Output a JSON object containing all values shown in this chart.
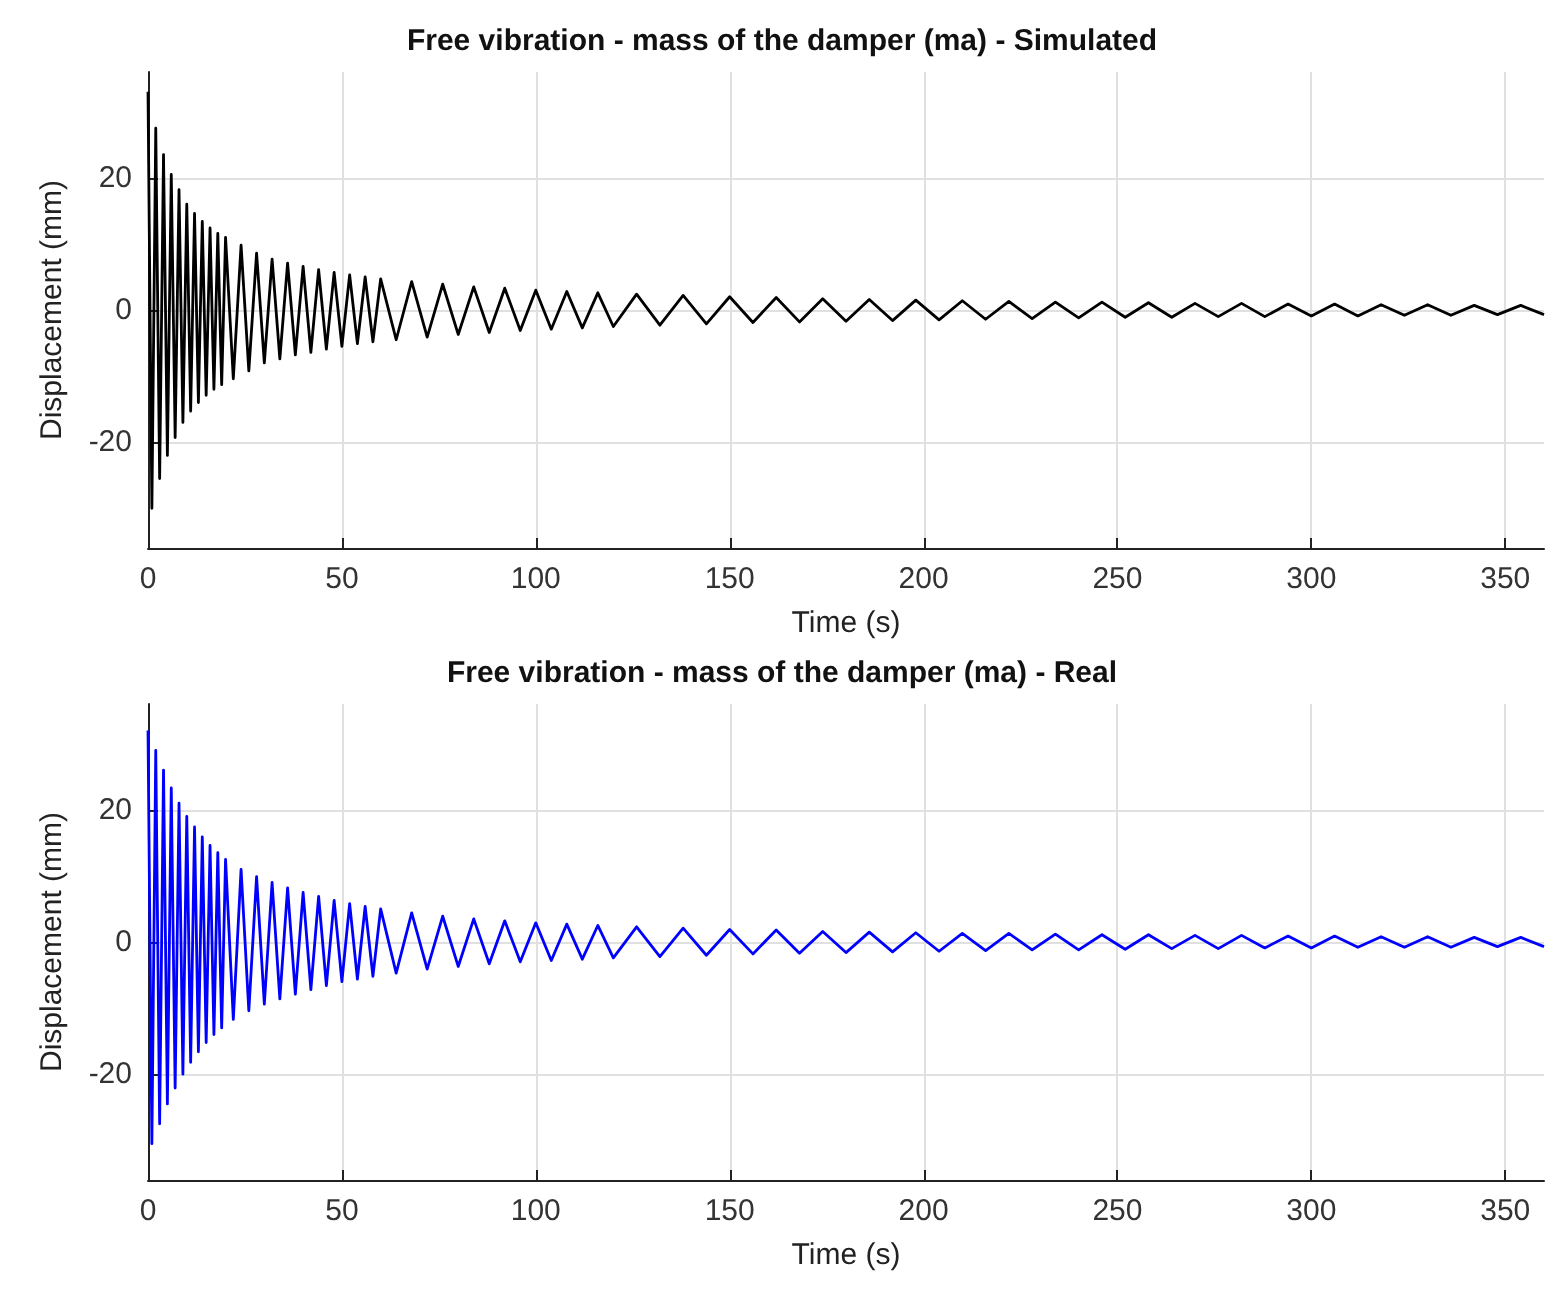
{
  "chart_data": [
    {
      "type": "line",
      "title": "Free vibration - mass of the damper (ma) - Simulated",
      "xlabel": "Time (s)",
      "ylabel": "Displacement (mm)",
      "x": [
        0,
        1,
        2,
        3,
        4,
        5,
        6,
        7,
        8,
        9,
        10,
        11,
        12,
        13,
        14,
        15,
        16,
        17,
        18,
        19,
        20,
        22,
        24,
        26,
        28,
        30,
        32,
        34,
        36,
        38,
        40,
        42,
        44,
        46,
        48,
        50,
        52,
        54,
        56,
        58,
        60,
        64,
        68,
        72,
        76,
        80,
        84,
        88,
        92,
        96,
        100,
        104,
        108,
        112,
        116,
        120,
        126,
        132,
        138,
        144,
        150,
        156,
        162,
        168,
        174,
        180,
        186,
        192,
        198,
        204,
        210,
        216,
        222,
        228,
        234,
        240,
        246,
        252,
        258,
        264,
        270,
        276,
        282,
        288,
        294,
        300,
        306,
        312,
        318,
        324,
        330,
        336,
        342,
        348,
        354,
        360
      ],
      "series": [
        {
          "color": "#000000",
          "values": [
            33,
            -30,
            27.5,
            -25.5,
            23.5,
            -22,
            20.5,
            -19.3,
            18.2,
            -17,
            16,
            -15.3,
            14.6,
            -14,
            13.4,
            -12.9,
            12.4,
            -12,
            11.6,
            -11.3,
            11,
            -10.4,
            9.8,
            -9.2,
            8.6,
            -8,
            7.7,
            -7.4,
            7.1,
            -6.8,
            6.6,
            -6.4,
            6.1,
            -5.9,
            5.7,
            -5.5,
            5.3,
            -5.1,
            5,
            -4.8,
            4.7,
            -4.5,
            4.3,
            -4.1,
            3.9,
            -3.7,
            3.5,
            -3.4,
            3.3,
            -3.1,
            3,
            -2.9,
            2.8,
            -2.7,
            2.6,
            -2.5,
            2.4,
            -2.3,
            2.2,
            -2.1,
            2,
            -1.9,
            1.9,
            -1.8,
            1.7,
            -1.7,
            1.6,
            -1.6,
            1.5,
            -1.5,
            1.4,
            -1.4,
            1.3,
            -1.3,
            1.2,
            -1.2,
            1.2,
            -1.1,
            1.1,
            -1.1,
            1,
            -1,
            1,
            -1,
            0.9,
            -0.9,
            0.9,
            -0.9,
            0.8,
            -0.8,
            0.8,
            -0.8,
            0.7,
            -0.7,
            0.7,
            -0.7
          ]
        }
      ],
      "xlim": [
        0,
        360
      ],
      "xticks": [
        0,
        50,
        100,
        150,
        200,
        250,
        300,
        350
      ],
      "ylim": [
        -36,
        36
      ],
      "yticks": [
        -20,
        0,
        20
      ],
      "grid": true,
      "marker": "none"
    },
    {
      "type": "line",
      "title": "Free vibration - mass of the damper (ma) - Real",
      "xlabel": "Time (s)",
      "ylabel": "Displacement (mm)",
      "x": [
        0,
        1,
        2,
        3,
        4,
        5,
        6,
        7,
        8,
        9,
        10,
        11,
        12,
        13,
        14,
        15,
        16,
        17,
        18,
        19,
        20,
        22,
        24,
        26,
        28,
        30,
        32,
        34,
        36,
        38,
        40,
        42,
        44,
        46,
        48,
        50,
        52,
        54,
        56,
        58,
        60,
        64,
        68,
        72,
        76,
        80,
        84,
        88,
        92,
        96,
        100,
        104,
        108,
        112,
        116,
        120,
        126,
        132,
        138,
        144,
        150,
        156,
        162,
        168,
        174,
        180,
        186,
        192,
        198,
        204,
        210,
        216,
        222,
        228,
        234,
        240,
        246,
        252,
        258,
        264,
        270,
        276,
        282,
        288,
        294,
        300,
        306,
        312,
        318,
        324,
        330,
        336,
        342,
        348,
        354,
        360
      ],
      "series": [
        {
          "color": "#0000ff",
          "values": [
            32,
            -30.5,
            29,
            -27.5,
            26,
            -24.5,
            23.3,
            -22.1,
            21,
            -20,
            19,
            -18.2,
            17.4,
            -16.6,
            15.9,
            -15.2,
            14.6,
            -14,
            13.5,
            -13,
            12.5,
            -11.7,
            11,
            -10.4,
            9.9,
            -9.4,
            9,
            -8.6,
            8.2,
            -7.9,
            7.5,
            -7.2,
            6.9,
            -6.6,
            6.3,
            -6,
            5.8,
            -5.6,
            5.4,
            -5.2,
            5,
            -4.7,
            4.4,
            -4.1,
            3.9,
            -3.7,
            3.5,
            -3.3,
            3.2,
            -3,
            2.9,
            -2.8,
            2.7,
            -2.6,
            2.5,
            -2.4,
            2.3,
            -2.2,
            2.1,
            -2,
            1.9,
            -1.8,
            1.8,
            -1.7,
            1.6,
            -1.6,
            1.5,
            -1.5,
            1.4,
            -1.4,
            1.3,
            -1.3,
            1.3,
            -1.2,
            1.2,
            -1.2,
            1.1,
            -1.1,
            1.1,
            -1,
            1,
            -1,
            1,
            -0.9,
            0.9,
            -0.9,
            0.9,
            -0.8,
            0.8,
            -0.8,
            0.8,
            -0.8,
            0.7,
            -0.7,
            0.7,
            -0.7
          ]
        }
      ],
      "xlim": [
        0,
        360
      ],
      "xticks": [
        0,
        50,
        100,
        150,
        200,
        250,
        300,
        350
      ],
      "ylim": [
        -36,
        36
      ],
      "yticks": [
        -20,
        0,
        20
      ],
      "grid": true,
      "marker": "none"
    }
  ]
}
